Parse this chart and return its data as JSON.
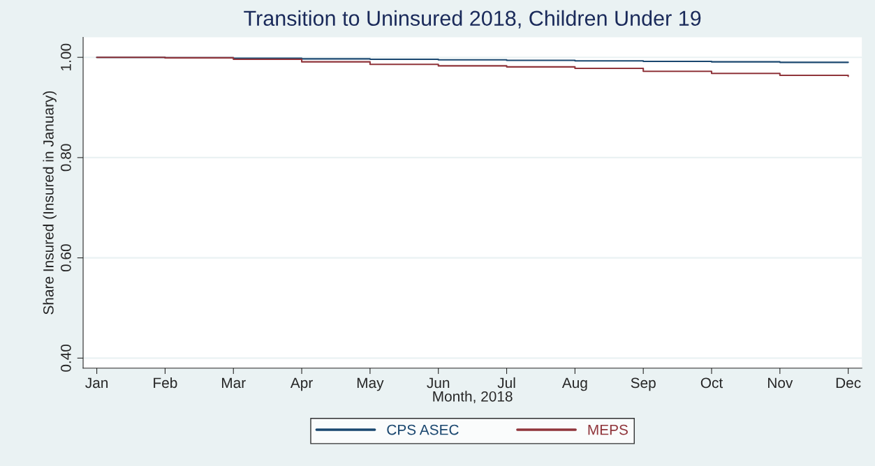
{
  "chart_data": {
    "type": "step",
    "title": "Transition to Uninsured 2018, Children Under 19",
    "xlabel": "Month, 2018",
    "ylabel": "Share Insured (Insured in January)",
    "categories": [
      "Jan",
      "Feb",
      "Mar",
      "Apr",
      "May",
      "Jun",
      "Jul",
      "Aug",
      "Sep",
      "Oct",
      "Nov",
      "Dec"
    ],
    "series": [
      {
        "name": "CPS ASEC",
        "color": "#1a476f",
        "values": [
          1.0,
          0.999,
          0.998,
          0.997,
          0.996,
          0.995,
          0.994,
          0.993,
          0.992,
          0.991,
          0.99,
          0.99
        ]
      },
      {
        "name": "MEPS",
        "color": "#90353b",
        "values": [
          1.0,
          0.999,
          0.996,
          0.991,
          0.986,
          0.983,
          0.981,
          0.978,
          0.972,
          0.968,
          0.964,
          0.962
        ]
      }
    ],
    "ylim": [
      0.38,
      1.04
    ],
    "yticks": [
      {
        "value": 0.4,
        "label": "0.40"
      },
      {
        "value": 0.6,
        "label": "0.60"
      },
      {
        "value": 0.8,
        "label": "0.80"
      },
      {
        "value": 1.0,
        "label": "1.00"
      }
    ],
    "grid": "y",
    "legend": "bottom"
  }
}
